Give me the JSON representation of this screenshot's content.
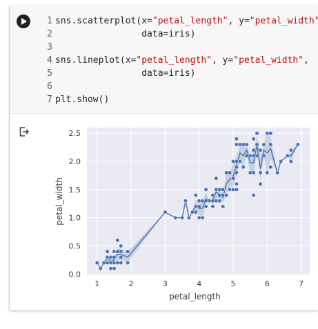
{
  "code_lines": [
    {
      "num": "1",
      "parts": [
        {
          "t": "sns.scatterplot(x=",
          "s": false
        },
        {
          "t": "\"petal_length\"",
          "s": true
        },
        {
          "t": ", y=",
          "s": false
        },
        {
          "t": "\"petal_width\"",
          "s": true
        },
        {
          "t": ",",
          "s": false
        }
      ]
    },
    {
      "num": "2",
      "parts": [
        {
          "t": "                data=iris)",
          "s": false
        }
      ]
    },
    {
      "num": "3",
      "parts": []
    },
    {
      "num": "4",
      "parts": [
        {
          "t": "sns.lineplot(x=",
          "s": false
        },
        {
          "t": "\"petal_length\"",
          "s": true
        },
        {
          "t": ", y=",
          "s": false
        },
        {
          "t": "\"petal_width\"",
          "s": true
        },
        {
          "t": ",",
          "s": false
        }
      ]
    },
    {
      "num": "5",
      "parts": [
        {
          "t": "                data=iris)",
          "s": false
        }
      ]
    },
    {
      "num": "6",
      "parts": []
    },
    {
      "num": "7",
      "parts": [
        {
          "t": "plt.show()",
          "s": false
        }
      ]
    }
  ],
  "icons": {
    "run": "play-circle-icon",
    "output": "output-exit-icon"
  },
  "chart_data": {
    "type": "scatter",
    "xlabel": "petal_length",
    "ylabel": "petal_width",
    "xlim": [
      0.7,
      7.25
    ],
    "ylim": [
      -0.02,
      2.6
    ],
    "xticks": [
      1,
      2,
      3,
      4,
      5,
      6,
      7
    ],
    "yticks": [
      0.0,
      0.5,
      1.0,
      1.5,
      2.0,
      2.5
    ],
    "ytick_labels": [
      "0.0",
      "0.5",
      "1.0",
      "1.5",
      "2.0",
      "2.5"
    ],
    "grid": true,
    "colors": {
      "points": "#4c72b0",
      "line": "#4c72b0",
      "band": "#a7b9d6",
      "background": "#eaeaf2",
      "grid": "#ffffff"
    },
    "points": [
      [
        1.0,
        0.2
      ],
      [
        1.1,
        0.1
      ],
      [
        1.2,
        0.2
      ],
      [
        1.3,
        0.2
      ],
      [
        1.3,
        0.3
      ],
      [
        1.3,
        0.4
      ],
      [
        1.4,
        0.1
      ],
      [
        1.4,
        0.2
      ],
      [
        1.4,
        0.3
      ],
      [
        1.5,
        0.1
      ],
      [
        1.5,
        0.2
      ],
      [
        1.5,
        0.3
      ],
      [
        1.5,
        0.4
      ],
      [
        1.6,
        0.2
      ],
      [
        1.6,
        0.4
      ],
      [
        1.6,
        0.6
      ],
      [
        1.7,
        0.2
      ],
      [
        1.7,
        0.3
      ],
      [
        1.7,
        0.4
      ],
      [
        1.7,
        0.5
      ],
      [
        1.9,
        0.2
      ],
      [
        1.9,
        0.4
      ],
      [
        3.0,
        1.1
      ],
      [
        3.3,
        1.0
      ],
      [
        3.5,
        1.0
      ],
      [
        3.6,
        1.3
      ],
      [
        3.7,
        1.0
      ],
      [
        3.8,
        1.1
      ],
      [
        3.9,
        1.1
      ],
      [
        3.9,
        1.2
      ],
      [
        3.9,
        1.4
      ],
      [
        4.0,
        1.0
      ],
      [
        4.0,
        1.2
      ],
      [
        4.0,
        1.3
      ],
      [
        4.1,
        1.0
      ],
      [
        4.1,
        1.3
      ],
      [
        4.2,
        1.2
      ],
      [
        4.2,
        1.3
      ],
      [
        4.2,
        1.5
      ],
      [
        4.3,
        1.3
      ],
      [
        4.4,
        1.2
      ],
      [
        4.4,
        1.3
      ],
      [
        4.4,
        1.4
      ],
      [
        4.5,
        1.3
      ],
      [
        4.5,
        1.5
      ],
      [
        4.5,
        1.7
      ],
      [
        4.6,
        1.3
      ],
      [
        4.6,
        1.4
      ],
      [
        4.6,
        1.5
      ],
      [
        4.7,
        1.2
      ],
      [
        4.7,
        1.4
      ],
      [
        4.7,
        1.5
      ],
      [
        4.8,
        1.4
      ],
      [
        4.8,
        1.8
      ],
      [
        4.9,
        1.5
      ],
      [
        4.9,
        1.8
      ],
      [
        5.0,
        1.5
      ],
      [
        5.0,
        1.7
      ],
      [
        5.0,
        2.0
      ],
      [
        5.1,
        1.5
      ],
      [
        5.1,
        1.6
      ],
      [
        5.1,
        1.8
      ],
      [
        5.1,
        1.9
      ],
      [
        5.1,
        2.0
      ],
      [
        5.1,
        2.3
      ],
      [
        5.1,
        2.4
      ],
      [
        5.2,
        2.0
      ],
      [
        5.2,
        2.3
      ],
      [
        5.3,
        1.9
      ],
      [
        5.3,
        2.3
      ],
      [
        5.4,
        2.1
      ],
      [
        5.4,
        2.3
      ],
      [
        5.5,
        1.8
      ],
      [
        5.5,
        2.1
      ],
      [
        5.6,
        1.4
      ],
      [
        5.6,
        1.8
      ],
      [
        5.6,
        2.1
      ],
      [
        5.6,
        2.2
      ],
      [
        5.6,
        2.4
      ],
      [
        5.7,
        2.1
      ],
      [
        5.7,
        2.3
      ],
      [
        5.7,
        2.5
      ],
      [
        5.8,
        1.6
      ],
      [
        5.8,
        1.8
      ],
      [
        5.8,
        2.2
      ],
      [
        5.9,
        2.1
      ],
      [
        5.9,
        2.3
      ],
      [
        6.0,
        1.8
      ],
      [
        6.0,
        2.5
      ],
      [
        6.1,
        1.9
      ],
      [
        6.1,
        2.3
      ],
      [
        6.1,
        2.5
      ],
      [
        6.3,
        1.8
      ],
      [
        6.4,
        2.0
      ],
      [
        6.6,
        2.1
      ],
      [
        6.7,
        2.0
      ],
      [
        6.7,
        2.2
      ],
      [
        6.9,
        2.3
      ]
    ],
    "line": [
      [
        1.0,
        0.2
      ],
      [
        1.1,
        0.1
      ],
      [
        1.2,
        0.2
      ],
      [
        1.3,
        0.29
      ],
      [
        1.4,
        0.22
      ],
      [
        1.5,
        0.26
      ],
      [
        1.6,
        0.35
      ],
      [
        1.7,
        0.35
      ],
      [
        1.9,
        0.3
      ],
      [
        3.0,
        1.1
      ],
      [
        3.3,
        1.0
      ],
      [
        3.5,
        1.0
      ],
      [
        3.6,
        1.3
      ],
      [
        3.7,
        1.0
      ],
      [
        3.8,
        1.1
      ],
      [
        3.9,
        1.23
      ],
      [
        4.0,
        1.16
      ],
      [
        4.1,
        1.17
      ],
      [
        4.2,
        1.34
      ],
      [
        4.3,
        1.3
      ],
      [
        4.4,
        1.3
      ],
      [
        4.5,
        1.46
      ],
      [
        4.6,
        1.4
      ],
      [
        4.7,
        1.36
      ],
      [
        4.8,
        1.6
      ],
      [
        4.9,
        1.68
      ],
      [
        5.0,
        1.73
      ],
      [
        5.1,
        1.94
      ],
      [
        5.2,
        2.15
      ],
      [
        5.3,
        2.1
      ],
      [
        5.4,
        2.2
      ],
      [
        5.5,
        1.97
      ],
      [
        5.6,
        1.98
      ],
      [
        5.7,
        2.3
      ],
      [
        5.8,
        1.87
      ],
      [
        5.9,
        2.2
      ],
      [
        6.0,
        2.15
      ],
      [
        6.1,
        2.23
      ],
      [
        6.3,
        1.8
      ],
      [
        6.4,
        2.0
      ],
      [
        6.6,
        2.1
      ],
      [
        6.7,
        2.1
      ],
      [
        6.9,
        2.3
      ]
    ],
    "ci_low": [
      [
        1.0,
        0.2
      ],
      [
        1.1,
        0.1
      ],
      [
        1.2,
        0.2
      ],
      [
        1.3,
        0.22
      ],
      [
        1.4,
        0.18
      ],
      [
        1.5,
        0.21
      ],
      [
        1.6,
        0.25
      ],
      [
        1.7,
        0.25
      ],
      [
        1.9,
        0.2
      ],
      [
        3.0,
        1.1
      ],
      [
        3.3,
        1.0
      ],
      [
        3.5,
        1.0
      ],
      [
        3.6,
        1.3
      ],
      [
        3.7,
        1.0
      ],
      [
        3.8,
        1.1
      ],
      [
        3.9,
        1.1
      ],
      [
        4.0,
        1.05
      ],
      [
        4.1,
        1.0
      ],
      [
        4.2,
        1.25
      ],
      [
        4.3,
        1.3
      ],
      [
        4.4,
        1.22
      ],
      [
        4.5,
        1.35
      ],
      [
        4.6,
        1.33
      ],
      [
        4.7,
        1.28
      ],
      [
        4.8,
        1.4
      ],
      [
        4.9,
        1.55
      ],
      [
        5.0,
        1.55
      ],
      [
        5.1,
        1.75
      ],
      [
        5.2,
        2.0
      ],
      [
        5.3,
        1.9
      ],
      [
        5.4,
        2.1
      ],
      [
        5.5,
        1.8
      ],
      [
        5.6,
        1.75
      ],
      [
        5.7,
        2.15
      ],
      [
        5.8,
        1.65
      ],
      [
        5.9,
        2.1
      ],
      [
        6.0,
        1.8
      ],
      [
        6.1,
        2.03
      ],
      [
        6.3,
        1.8
      ],
      [
        6.4,
        2.0
      ],
      [
        6.6,
        2.1
      ],
      [
        6.7,
        2.0
      ],
      [
        6.9,
        2.3
      ]
    ],
    "ci_high": [
      [
        1.0,
        0.2
      ],
      [
        1.1,
        0.1
      ],
      [
        1.2,
        0.2
      ],
      [
        1.3,
        0.36
      ],
      [
        1.4,
        0.26
      ],
      [
        1.5,
        0.31
      ],
      [
        1.6,
        0.45
      ],
      [
        1.7,
        0.45
      ],
      [
        1.9,
        0.4
      ],
      [
        3.0,
        1.1
      ],
      [
        3.3,
        1.0
      ],
      [
        3.5,
        1.0
      ],
      [
        3.6,
        1.3
      ],
      [
        3.7,
        1.0
      ],
      [
        3.8,
        1.1
      ],
      [
        3.9,
        1.33
      ],
      [
        4.0,
        1.25
      ],
      [
        4.1,
        1.3
      ],
      [
        4.2,
        1.45
      ],
      [
        4.3,
        1.3
      ],
      [
        4.4,
        1.38
      ],
      [
        4.5,
        1.55
      ],
      [
        4.6,
        1.47
      ],
      [
        4.7,
        1.45
      ],
      [
        4.8,
        1.8
      ],
      [
        4.9,
        1.8
      ],
      [
        5.0,
        1.95
      ],
      [
        5.1,
        2.1
      ],
      [
        5.2,
        2.3
      ],
      [
        5.3,
        2.3
      ],
      [
        5.4,
        2.3
      ],
      [
        5.5,
        2.1
      ],
      [
        5.6,
        2.2
      ],
      [
        5.7,
        2.45
      ],
      [
        5.8,
        2.1
      ],
      [
        5.9,
        2.3
      ],
      [
        6.0,
        2.5
      ],
      [
        6.1,
        2.43
      ],
      [
        6.3,
        1.8
      ],
      [
        6.4,
        2.0
      ],
      [
        6.6,
        2.1
      ],
      [
        6.7,
        2.2
      ],
      [
        6.9,
        2.3
      ]
    ]
  }
}
